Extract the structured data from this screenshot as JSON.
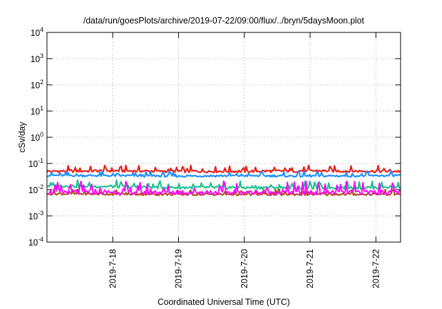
{
  "chart_data": {
    "type": "line",
    "title": "/data/run/goesPlots/archive/2019-07-22/09:00/flux/../bryn/5daysMoon.plot",
    "xlabel": "Coordinated Universal Time (UTC)",
    "ylabel": "cSv/day",
    "yscale": "log",
    "ylim": [
      0.0001,
      10000
    ],
    "y_ticks": [
      {
        "value": 0.0001,
        "base": "10",
        "exp": "-4"
      },
      {
        "value": 0.001,
        "base": "10",
        "exp": "-3"
      },
      {
        "value": 0.01,
        "base": "10",
        "exp": "-2"
      },
      {
        "value": 0.1,
        "base": "10",
        "exp": "-1"
      },
      {
        "value": 1,
        "base": "10",
        "exp": "0"
      },
      {
        "value": 10,
        "base": "10",
        "exp": "1"
      },
      {
        "value": 100,
        "base": "10",
        "exp": "2"
      },
      {
        "value": 1000,
        "base": "10",
        "exp": "3"
      },
      {
        "value": 10000,
        "base": "10",
        "exp": "4"
      }
    ],
    "xlim": [
      "2019-07-17 00:00",
      "2019-07-22 09:00"
    ],
    "x_ticks": [
      "2019-7-18",
      "2019-7-19",
      "2019-7-20",
      "2019-7-21",
      "2019-7-22"
    ],
    "grid": true,
    "series": [
      {
        "color": "#e8201a",
        "x": [
          "2019-07-17 00:00",
          "2019-07-18 00:00",
          "2019-07-19 00:00",
          "2019-07-20 00:00",
          "2019-07-21 00:00",
          "2019-07-22 00:00",
          "2019-07-22 09:00"
        ],
        "y": [
          0.05,
          0.052,
          0.05,
          0.05,
          0.052,
          0.05,
          0.05
        ]
      },
      {
        "color": "#1e90ff",
        "x": [
          "2019-07-17 00:00",
          "2019-07-18 00:00",
          "2019-07-19 00:00",
          "2019-07-20 00:00",
          "2019-07-21 00:00",
          "2019-07-22 00:00",
          "2019-07-22 09:00"
        ],
        "y": [
          0.035,
          0.034,
          0.033,
          0.034,
          0.033,
          0.034,
          0.035
        ]
      },
      {
        "color": "#20c090",
        "x": [
          "2019-07-17 00:00",
          "2019-07-18 00:00",
          "2019-07-19 00:00",
          "2019-07-20 00:00",
          "2019-07-21 00:00",
          "2019-07-22 00:00",
          "2019-07-22 09:00"
        ],
        "y": [
          0.014,
          0.013,
          0.012,
          0.012,
          0.012,
          0.012,
          0.013
        ]
      },
      {
        "color": "#b05020",
        "x": [
          "2019-07-17 00:00",
          "2019-07-18 00:00",
          "2019-07-19 00:00",
          "2019-07-20 00:00",
          "2019-07-21 00:00",
          "2019-07-22 00:00",
          "2019-07-22 09:00"
        ],
        "y": [
          0.007,
          0.0068,
          0.0066,
          0.0066,
          0.0066,
          0.0067,
          0.0068
        ]
      },
      {
        "color": "#ff00ff",
        "x": [
          "2019-07-17 00:00",
          "2019-07-18 00:00",
          "2019-07-19 00:00",
          "2019-07-20 00:00",
          "2019-07-21 00:00",
          "2019-07-22 00:00",
          "2019-07-22 09:00"
        ],
        "y": [
          0.008,
          0.008,
          0.0078,
          0.0078,
          0.0078,
          0.008,
          0.008
        ]
      }
    ]
  }
}
